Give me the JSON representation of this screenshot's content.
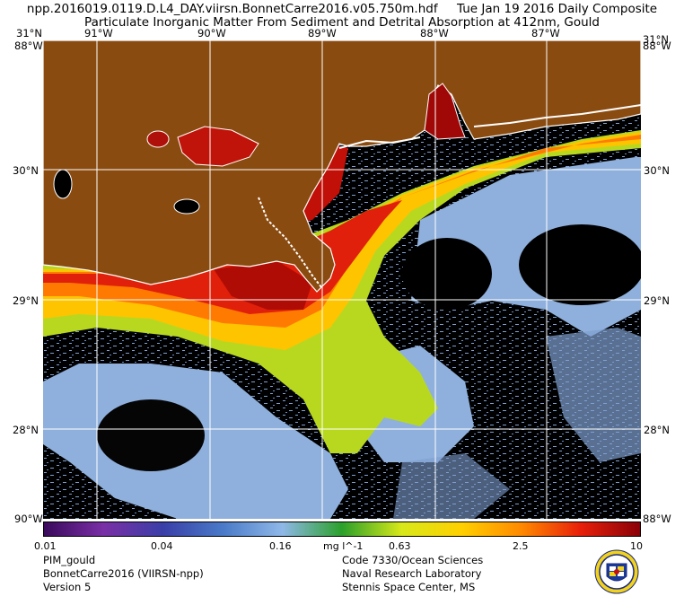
{
  "header": {
    "line1": "npp.2016019.0119.D.L4_DAY.viirsn.BonnetCarre2016.v05.750m.hdf     Tue Jan 19 2016 Daily Composite",
    "line2": "Particulate Inorganic Matter From Sediment and Detrital Absorption at 412nm, Gould"
  },
  "map": {
    "lon_labels": [
      "91°W",
      "90°W",
      "89°W",
      "88°W",
      "87°W"
    ],
    "lat_labels": [
      "30°N",
      "29°N",
      "28°N"
    ],
    "corner_top": "31°N",
    "corner_side": "88°W",
    "corner_bottom": "90°W",
    "colors": {
      "land": "#8a4b10",
      "deep_water": "#000000",
      "clear_water": "#8fb0dc",
      "coast": "#ffffff",
      "grid": "#ffffff"
    }
  },
  "colorbar": {
    "ticks": [
      "0.01",
      "0.04",
      "0.16",
      "0.63",
      "2.5",
      "10"
    ],
    "unit": "mg l^-1",
    "stops": [
      "#3a0a5c",
      "#7a2fa6",
      "#3a3fa8",
      "#4a7ac8",
      "#8fb8e8",
      "#2aa02a",
      "#d8e81a",
      "#ffd000",
      "#ff8a00",
      "#e8200a",
      "#8a0008"
    ]
  },
  "footer": {
    "left": [
      "PIM_gould",
      "BonnetCarre2016 (VIIRSN-npp)",
      "Version 5"
    ],
    "right": [
      "Code 7330/Ocean Sciences",
      "Naval Research Laboratory",
      "Stennis Space Center, MS"
    ]
  },
  "logo": {
    "name": "nrl-seal-logo"
  }
}
